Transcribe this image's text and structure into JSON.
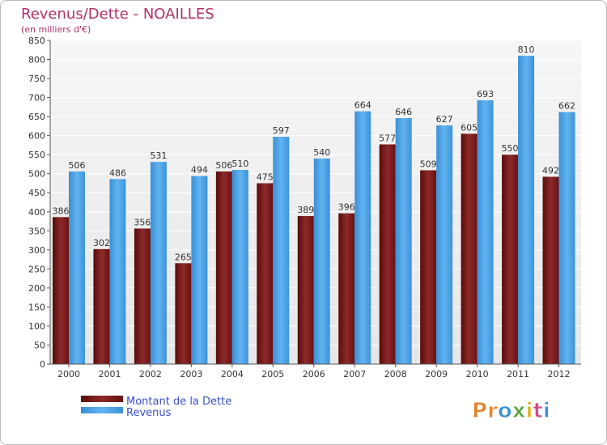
{
  "chart_data": {
    "type": "bar",
    "title": "Revenus/Dette - NOAILLES",
    "subtitle": "(en milliers d'€)",
    "categories": [
      "2000",
      "2001",
      "2002",
      "2003",
      "2004",
      "2005",
      "2006",
      "2007",
      "2008",
      "2009",
      "2010",
      "2011",
      "2012"
    ],
    "series": [
      {
        "name": "Montant de la Dette",
        "values": [
          386,
          302,
          356,
          265,
          506,
          475,
          389,
          396,
          577,
          509,
          605,
          550,
          492
        ],
        "color": "#7a1a1a"
      },
      {
        "name": "Revenus",
        "values": [
          506,
          486,
          531,
          494,
          510,
          597,
          540,
          664,
          646,
          627,
          693,
          810,
          662
        ],
        "color": "#4aa3e8"
      }
    ],
    "ylim": [
      0,
      850
    ],
    "yticks": [
      0,
      50,
      100,
      150,
      200,
      250,
      300,
      350,
      400,
      450,
      500,
      550,
      600,
      650,
      700,
      750,
      800,
      850
    ],
    "grid": true,
    "legend_position": "bottom-left"
  },
  "logo": {
    "text": "Proxiti"
  }
}
